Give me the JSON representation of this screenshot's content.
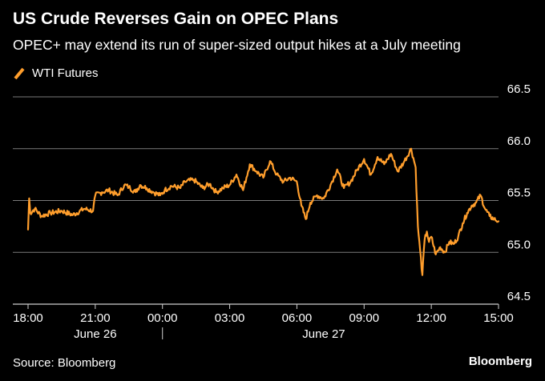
{
  "header": {
    "title": "US Crude Reverses Gain on OPEC Plans",
    "subtitle": "OPEC+ may extend its run of super-sized output hikes at a July meeting"
  },
  "colors": {
    "background": "#000000",
    "series": "#FF9E2C",
    "grid": "#7a7a7a",
    "text": "#ffffff"
  },
  "footer": {
    "source": "Source: Bloomberg",
    "brand": "Bloomberg"
  },
  "chart_data": {
    "type": "line",
    "title": "US Crude Reverses Gain on OPEC Plans",
    "subtitle": "OPEC+ may extend its run of super-sized output hikes at a July meeting",
    "legend": {
      "placement": "top-left"
    },
    "grid": true,
    "y_axis_side": "right",
    "ylim": [
      64.5,
      66.5
    ],
    "yticks": [
      64.5,
      65.0,
      65.5,
      66.0,
      66.5
    ],
    "ytick_labels": [
      "64.5",
      "65.0",
      "65.5",
      "66.0",
      "66.5"
    ],
    "x_axis": {
      "unit": "hours",
      "range": [
        0,
        21
      ],
      "ticks": [
        {
          "x": 0,
          "label": "18:00"
        },
        {
          "x": 3,
          "label": "21:00"
        },
        {
          "x": 6,
          "label": "00:00"
        },
        {
          "x": 9,
          "label": "03:00"
        },
        {
          "x": 12,
          "label": "06:00"
        },
        {
          "x": 15,
          "label": "09:00"
        },
        {
          "x": 18,
          "label": "12:00"
        },
        {
          "x": 21,
          "label": "15:00"
        }
      ],
      "day_labels": [
        {
          "x": 3,
          "label": "June 26"
        },
        {
          "x": 13.2,
          "label": "June 27"
        }
      ],
      "day_separator_x": 6
    },
    "series": [
      {
        "name": "WTI Futures",
        "color": "#FF9E2C",
        "x": [
          0,
          0.05,
          0.1,
          0.3,
          0.6,
          1.0,
          1.5,
          2.0,
          2.5,
          2.9,
          3.0,
          3.3,
          3.6,
          4.0,
          4.3,
          4.5,
          4.8,
          5.0,
          5.3,
          5.6,
          5.9,
          6.1,
          6.4,
          6.8,
          7.0,
          7.4,
          7.8,
          8.1,
          8.4,
          8.7,
          9.0,
          9.3,
          9.6,
          9.9,
          10.2,
          10.5,
          10.8,
          11.1,
          11.4,
          11.7,
          12.0,
          12.2,
          12.4,
          12.6,
          12.9,
          13.2,
          13.5,
          13.8,
          14.1,
          14.4,
          14.7,
          15.0,
          15.3,
          15.6,
          15.9,
          16.2,
          16.5,
          16.8,
          17.1,
          17.3,
          17.4,
          17.5,
          17.6,
          17.7,
          17.8,
          17.9,
          18.0,
          18.2,
          18.4,
          18.6,
          18.8,
          19.0,
          19.2,
          19.4,
          19.6,
          19.8,
          20.0,
          20.2,
          20.4,
          20.6,
          20.8,
          21.0
        ],
        "values": [
          65.22,
          65.52,
          65.38,
          65.42,
          65.35,
          65.38,
          65.4,
          65.36,
          65.42,
          65.4,
          65.55,
          65.58,
          65.6,
          65.55,
          65.65,
          65.63,
          65.58,
          65.65,
          65.62,
          65.58,
          65.55,
          65.6,
          65.64,
          65.62,
          65.68,
          65.7,
          65.62,
          65.66,
          65.58,
          65.62,
          65.65,
          65.75,
          65.6,
          65.85,
          65.78,
          65.72,
          65.88,
          65.75,
          65.68,
          65.72,
          65.68,
          65.45,
          65.32,
          65.48,
          65.55,
          65.52,
          65.65,
          65.8,
          65.62,
          65.68,
          65.8,
          65.9,
          65.75,
          65.92,
          65.85,
          65.95,
          65.78,
          65.88,
          66.0,
          65.82,
          65.25,
          65.02,
          64.78,
          65.12,
          65.2,
          65.1,
          65.15,
          64.98,
          65.05,
          65.0,
          65.1,
          65.08,
          65.15,
          65.28,
          65.38,
          65.45,
          65.48,
          65.55,
          65.42,
          65.35,
          65.32,
          65.3
        ]
      }
    ]
  }
}
